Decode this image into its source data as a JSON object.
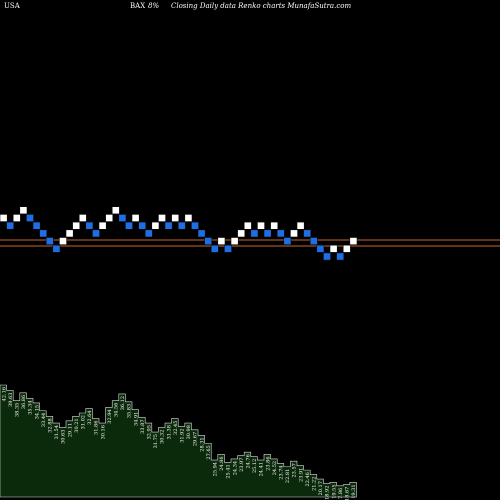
{
  "header": {
    "country": "USA",
    "symbol": "BAX",
    "change": "8%",
    "description": "Closing Daily data  Renko  charts MunafaSutra.com"
  },
  "colors": {
    "background": "#000000",
    "up_brick": "#ffffff",
    "down_brick": "#1e6fe6",
    "brick_edge": "#0a0a0a",
    "reference_line": "#c86428",
    "volume_fill": "#0b2a0b",
    "volume_edge": "#dcdcdc"
  },
  "chart_data": {
    "type": "renko",
    "reference_lines": [
      "upper",
      "lower"
    ],
    "bricks": [
      {
        "dir": "up",
        "level": 0
      },
      {
        "dir": "down",
        "level": -1
      },
      {
        "dir": "up",
        "level": 0
      },
      {
        "dir": "up",
        "level": 1
      },
      {
        "dir": "down",
        "level": 0
      },
      {
        "dir": "down",
        "level": -1
      },
      {
        "dir": "down",
        "level": -2
      },
      {
        "dir": "down",
        "level": -3
      },
      {
        "dir": "down",
        "level": -4
      },
      {
        "dir": "up",
        "level": -3
      },
      {
        "dir": "up",
        "level": -2
      },
      {
        "dir": "up",
        "level": -1
      },
      {
        "dir": "up",
        "level": 0
      },
      {
        "dir": "down",
        "level": -1
      },
      {
        "dir": "down",
        "level": -2
      },
      {
        "dir": "up",
        "level": -1
      },
      {
        "dir": "up",
        "level": 0
      },
      {
        "dir": "up",
        "level": 1
      },
      {
        "dir": "down",
        "level": 0
      },
      {
        "dir": "down",
        "level": -1
      },
      {
        "dir": "up",
        "level": 0
      },
      {
        "dir": "down",
        "level": -1
      },
      {
        "dir": "down",
        "level": -2
      },
      {
        "dir": "up",
        "level": -1
      },
      {
        "dir": "up",
        "level": 0
      },
      {
        "dir": "down",
        "level": -1
      },
      {
        "dir": "up",
        "level": 0
      },
      {
        "dir": "down",
        "level": -1
      },
      {
        "dir": "up",
        "level": 0
      },
      {
        "dir": "down",
        "level": -1
      },
      {
        "dir": "down",
        "level": -2
      },
      {
        "dir": "down",
        "level": -3
      },
      {
        "dir": "down",
        "level": -4
      },
      {
        "dir": "up",
        "level": -3
      },
      {
        "dir": "down",
        "level": -4
      },
      {
        "dir": "up",
        "level": -3
      },
      {
        "dir": "up",
        "level": -2
      },
      {
        "dir": "up",
        "level": -1
      },
      {
        "dir": "down",
        "level": -2
      },
      {
        "dir": "up",
        "level": -1
      },
      {
        "dir": "down",
        "level": -2
      },
      {
        "dir": "up",
        "level": -1
      },
      {
        "dir": "down",
        "level": -2
      },
      {
        "dir": "down",
        "level": -3
      },
      {
        "dir": "up",
        "level": -2
      },
      {
        "dir": "up",
        "level": -1
      },
      {
        "dir": "down",
        "level": -2
      },
      {
        "dir": "down",
        "level": -3
      },
      {
        "dir": "down",
        "level": -4
      },
      {
        "dir": "down",
        "level": -5
      },
      {
        "dir": "up",
        "level": -4
      },
      {
        "dir": "down",
        "level": -5
      },
      {
        "dir": "up",
        "level": -4
      },
      {
        "dir": "up",
        "level": -3
      }
    ],
    "volume": [
      {
        "label": "42.16",
        "value": 100
      },
      {
        "label": "39.63",
        "value": 95
      },
      {
        "label": "38.35",
        "value": 86
      },
      {
        "label": "36.86",
        "value": 93
      },
      {
        "label": "35.34",
        "value": 88
      },
      {
        "label": "34.15",
        "value": 84
      },
      {
        "label": "33.44",
        "value": 77
      },
      {
        "label": "32.88",
        "value": 72
      },
      {
        "label": "31.54",
        "value": 66
      },
      {
        "label": "30.63",
        "value": 62
      },
      {
        "label": "29.11",
        "value": 68
      },
      {
        "label": "30.21",
        "value": 72
      },
      {
        "label": "31.02",
        "value": 75
      },
      {
        "label": "32.64",
        "value": 79
      },
      {
        "label": "31.86",
        "value": 70
      },
      {
        "label": "30.16",
        "value": 66
      },
      {
        "label": "32.94",
        "value": 80
      },
      {
        "label": "34.56",
        "value": 86
      },
      {
        "label": "36.12",
        "value": 92
      },
      {
        "label": "35.83",
        "value": 85
      },
      {
        "label": "34.91",
        "value": 78
      },
      {
        "label": "33.87",
        "value": 71
      },
      {
        "label": "32.95",
        "value": 66
      },
      {
        "label": "31.75",
        "value": 58
      },
      {
        "label": "30.32",
        "value": 62
      },
      {
        "label": "31.38",
        "value": 66
      },
      {
        "label": "32.45",
        "value": 70
      },
      {
        "label": "31.92",
        "value": 63
      },
      {
        "label": "30.98",
        "value": 66
      },
      {
        "label": "29.67",
        "value": 60
      },
      {
        "label": "28.31",
        "value": 55
      },
      {
        "label": "27.65",
        "value": 48
      },
      {
        "label": "25.94",
        "value": 33
      },
      {
        "label": "24.86",
        "value": 38
      },
      {
        "label": "25.41",
        "value": 31
      },
      {
        "label": "24.34",
        "value": 34
      },
      {
        "label": "23.97",
        "value": 37
      },
      {
        "label": "24.76",
        "value": 40
      },
      {
        "label": "25.12",
        "value": 36
      },
      {
        "label": "24.41",
        "value": 33
      },
      {
        "label": "23.86",
        "value": 38
      },
      {
        "label": "24.52",
        "value": 34
      },
      {
        "label": "23.74",
        "value": 30
      },
      {
        "label": "22.81",
        "value": 27
      },
      {
        "label": "23.57",
        "value": 32
      },
      {
        "label": "23.91",
        "value": 28
      },
      {
        "label": "22.46",
        "value": 24
      },
      {
        "label": "21.22",
        "value": 20
      },
      {
        "label": "20.17",
        "value": 16
      },
      {
        "label": "18.92",
        "value": 12
      },
      {
        "label": "19.55",
        "value": 13
      },
      {
        "label": "17.86",
        "value": 10
      },
      {
        "label": "18.67",
        "value": 11
      },
      {
        "label": "19.31",
        "value": 13
      }
    ]
  }
}
